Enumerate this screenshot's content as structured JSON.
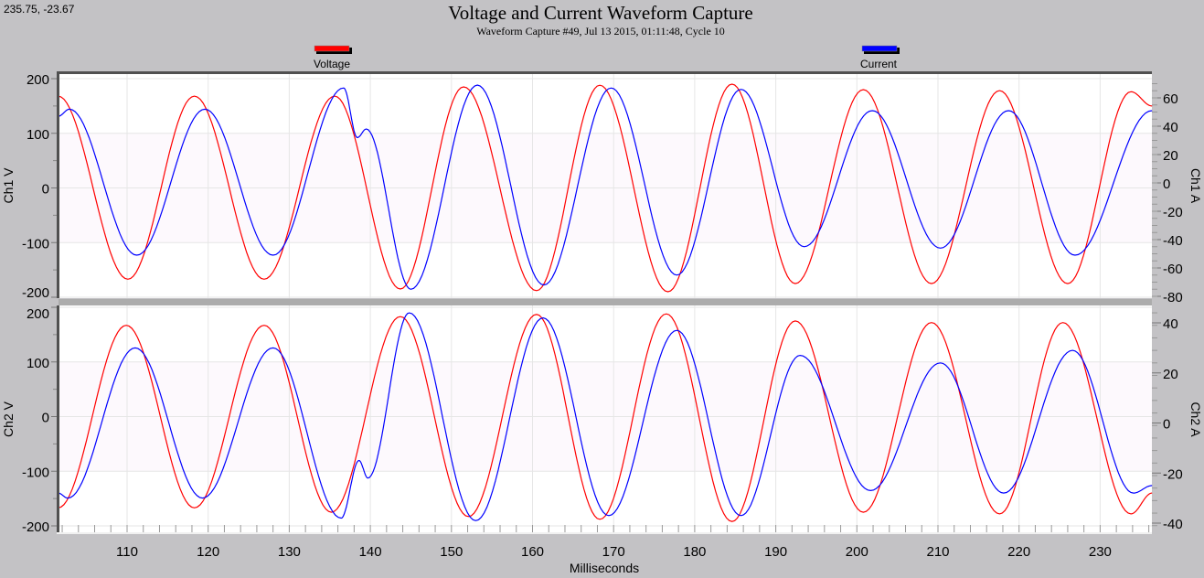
{
  "cursor_readout": "235.75, -23.67",
  "chart_data": {
    "type": "line",
    "title": "Voltage and Current Waveform Capture",
    "subtitle": "Waveform Capture #49, Jul 13 2015, 01:11:48,  Cycle 10",
    "xlabel": "Milliseconds",
    "xlim": [
      101.5,
      236.4
    ],
    "xticks": [
      110,
      120,
      130,
      140,
      150,
      160,
      170,
      180,
      190,
      200,
      210,
      220,
      230
    ],
    "grid": true,
    "legend_placement": "top",
    "legend": [
      {
        "name": "Voltage",
        "color": "#ff0000"
      },
      {
        "name": "Current",
        "color": "#0000ff"
      }
    ],
    "panels": [
      {
        "ylabel_left": "Ch1 V",
        "ylabel_right": "Ch1 A",
        "ylim_left": [
          -200,
          200
        ],
        "yticks_left": [
          200,
          100,
          0,
          -100,
          -200
        ],
        "ylim_right": [
          -80,
          72
        ],
        "yticks_right": [
          60,
          40,
          20,
          0,
          -20,
          -40,
          -60,
          -80
        ],
        "series": [
          {
            "name": "Voltage",
            "axis": "left",
            "color": "#ff0000",
            "points": [
              [
                101.5,
                168
              ],
              [
                110.1,
                -167
              ],
              [
                118.3,
                168
              ],
              [
                126.9,
                -167
              ],
              [
                135.6,
                168
              ],
              [
                143.7,
                -185
              ],
              [
                151.5,
                185
              ],
              [
                160.5,
                -188
              ],
              [
                168.3,
                188
              ],
              [
                176.7,
                -190
              ],
              [
                184.6,
                190
              ],
              [
                192.4,
                -175
              ],
              [
                200.8,
                180
              ],
              [
                209.2,
                -175
              ],
              [
                217.6,
                178
              ],
              [
                226.0,
                -175
              ],
              [
                233.8,
                176
              ],
              [
                236.4,
                150
              ]
            ]
          },
          {
            "name": "Current",
            "axis": "right",
            "color": "#0000ff",
            "points": [
              [
                101.5,
                47
              ],
              [
                102.9,
                52
              ],
              [
                111.2,
                -51
              ],
              [
                119.6,
                52
              ],
              [
                128.0,
                -51
              ],
              [
                136.7,
                67
              ],
              [
                138.4,
                32
              ],
              [
                139.5,
                38
              ],
              [
                145.0,
                -75
              ],
              [
                153.2,
                69
              ],
              [
                161.4,
                -72
              ],
              [
                169.7,
                67
              ],
              [
                177.8,
                -65
              ],
              [
                185.7,
                66
              ],
              [
                193.5,
                -45
              ],
              [
                201.9,
                51
              ],
              [
                210.3,
                -46
              ],
              [
                218.7,
                51
              ],
              [
                226.9,
                -51
              ],
              [
                236.4,
                51
              ]
            ]
          }
        ]
      },
      {
        "ylabel_left": "Ch2 V",
        "ylabel_right": "Ch2 A",
        "ylim_left": [
          -200,
          200
        ],
        "yticks_left": [
          200,
          100,
          0,
          -100,
          -200
        ],
        "ylim_right": [
          -41,
          46
        ],
        "yticks_right": [
          40,
          20,
          0,
          -20,
          -40
        ],
        "series": [
          {
            "name": "Voltage",
            "axis": "left",
            "color": "#ff0000",
            "points": [
              [
                101.5,
                -167
              ],
              [
                109.9,
                167
              ],
              [
                118.3,
                -167
              ],
              [
                126.9,
                167
              ],
              [
                135.2,
                -175
              ],
              [
                143.7,
                183
              ],
              [
                152.1,
                -183
              ],
              [
                160.5,
                187
              ],
              [
                168.3,
                -188
              ],
              [
                176.5,
                188
              ],
              [
                184.6,
                -192
              ],
              [
                192.4,
                175
              ],
              [
                200.8,
                -175
              ],
              [
                209.2,
                172
              ],
              [
                217.6,
                -178
              ],
              [
                225.4,
                172
              ],
              [
                233.8,
                -178
              ],
              [
                236.4,
                -140
              ]
            ]
          },
          {
            "name": "Current",
            "axis": "right",
            "color": "#0000ff",
            "points": [
              [
                101.5,
                -28
              ],
              [
                102.7,
                -30
              ],
              [
                111.0,
                30
              ],
              [
                119.3,
                -30
              ],
              [
                128.0,
                30
              ],
              [
                136.4,
                -38
              ],
              [
                138.6,
                -15
              ],
              [
                139.7,
                -22
              ],
              [
                144.8,
                44
              ],
              [
                153.0,
                -39
              ],
              [
                161.3,
                42
              ],
              [
                169.4,
                -37
              ],
              [
                177.8,
                37
              ],
              [
                185.7,
                -37
              ],
              [
                193.0,
                27
              ],
              [
                201.7,
                -27
              ],
              [
                210.3,
                24
              ],
              [
                218.1,
                -28
              ],
              [
                226.6,
                29
              ],
              [
                234.1,
                -28
              ],
              [
                236.4,
                -25
              ]
            ]
          }
        ]
      }
    ]
  }
}
